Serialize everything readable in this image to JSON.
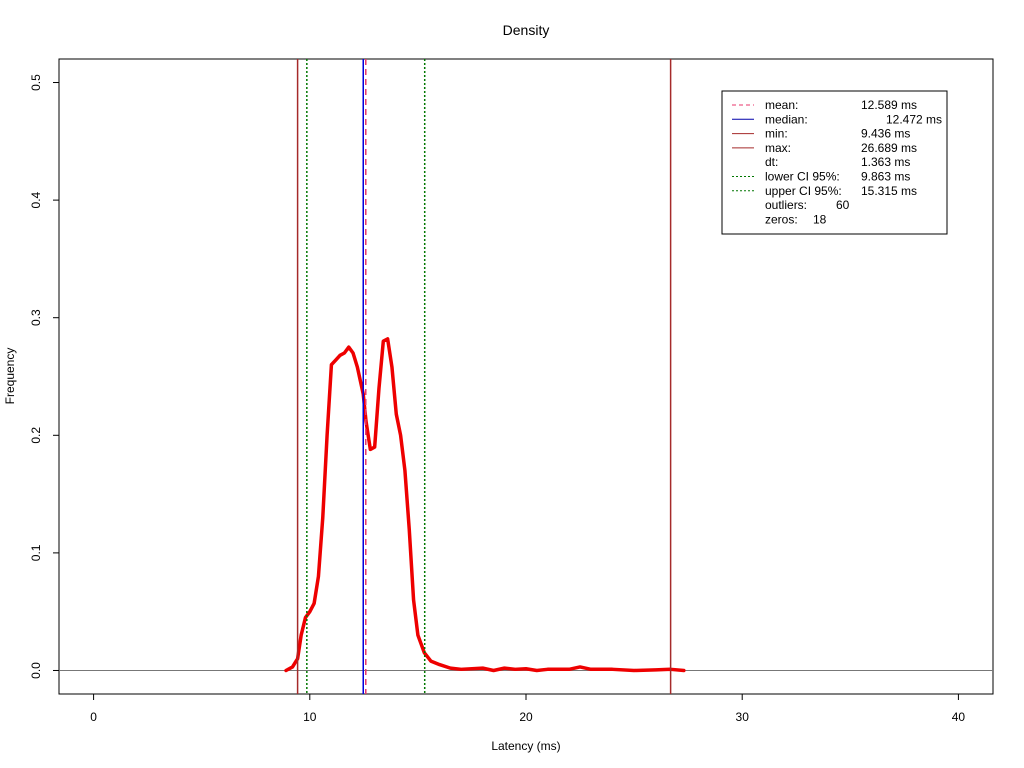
{
  "chart_data": {
    "type": "line",
    "title": "Density",
    "xlabel": "Latency (ms)",
    "ylabel": "Frequency",
    "xlim": [
      -1.6,
      41.6
    ],
    "ylim": [
      -0.02,
      0.52
    ],
    "x_ticks": [
      {
        "value": 0,
        "label": "0"
      },
      {
        "value": 10,
        "label": "10"
      },
      {
        "value": 20,
        "label": "20"
      },
      {
        "value": 30,
        "label": "30"
      },
      {
        "value": 40,
        "label": "40"
      }
    ],
    "y_ticks": [
      {
        "value": 0,
        "label": "0.0"
      },
      {
        "value": 0.1,
        "label": "0.1"
      },
      {
        "value": 0.2,
        "label": "0.2"
      },
      {
        "value": 0.3,
        "label": "0.3"
      },
      {
        "value": 0.4,
        "label": "0.4"
      },
      {
        "value": 0.5,
        "label": "0.5"
      }
    ],
    "grid": false,
    "series": [
      {
        "color": "#ee0000",
        "x": [
          8.9,
          9.2,
          9.436,
          9.6,
          9.8,
          10.0,
          10.2,
          10.4,
          10.6,
          10.8,
          11.0,
          11.2,
          11.4,
          11.6,
          11.8,
          12.0,
          12.2,
          12.472,
          12.6,
          12.8,
          13.0,
          13.2,
          13.4,
          13.6,
          13.8,
          14.0,
          14.2,
          14.4,
          14.6,
          14.8,
          15.0,
          15.3,
          15.6,
          16.0,
          16.5,
          17.0,
          18.0,
          18.5,
          19.0,
          19.5,
          20.0,
          20.5,
          21.0,
          22.0,
          22.5,
          23.0,
          24.0,
          25.0,
          26.0,
          26.689,
          27.3
        ],
        "y": [
          0.0,
          0.003,
          0.01,
          0.03,
          0.045,
          0.05,
          0.057,
          0.08,
          0.13,
          0.2,
          0.26,
          0.264,
          0.268,
          0.27,
          0.275,
          0.27,
          0.258,
          0.235,
          0.212,
          0.188,
          0.19,
          0.24,
          0.28,
          0.282,
          0.258,
          0.218,
          0.2,
          0.17,
          0.12,
          0.06,
          0.03,
          0.015,
          0.008,
          0.005,
          0.002,
          0.001,
          0.002,
          0.0,
          0.002,
          0.001,
          0.0015,
          0.0,
          0.001,
          0.001,
          0.003,
          0.001,
          0.001,
          0.0,
          0.0005,
          0.001,
          0.0
        ]
      }
    ],
    "baseline": {
      "y": 0,
      "color": "#777777"
    },
    "vlines": [
      {
        "name": "mean",
        "x": 12.589,
        "color": "#e8356b",
        "style": "dashed"
      },
      {
        "name": "median",
        "x": 12.472,
        "color": "#0000dd",
        "style": "solid"
      },
      {
        "name": "min",
        "x": 9.436,
        "color": "#a52a2a",
        "style": "solid"
      },
      {
        "name": "max",
        "x": 26.689,
        "color": "#a52a2a",
        "style": "solid"
      },
      {
        "name": "lower-ci",
        "x": 9.863,
        "color": "#007700",
        "style": "dotted"
      },
      {
        "name": "upper-ci",
        "x": 15.315,
        "color": "#007700",
        "style": "dotted"
      }
    ],
    "legend": {
      "placement": "top-right",
      "entries": [
        {
          "key": "mean",
          "label": "mean:",
          "value": "12.589 ms",
          "color": "#e8356b",
          "style": "dashed"
        },
        {
          "key": "median",
          "label": "median:",
          "value": "12.472 ms",
          "color": "#0000aa",
          "style": "solid"
        },
        {
          "key": "min",
          "label": "min:",
          "value": "9.436 ms",
          "color": "#a52a2a",
          "style": "solid"
        },
        {
          "key": "max",
          "label": "max:",
          "value": "26.689 ms",
          "color": "#a52a2a",
          "style": "solid"
        },
        {
          "key": "dt",
          "label": "dt:",
          "value": "1.363 ms",
          "color": "",
          "style": "none"
        },
        {
          "key": "lower-ci",
          "label": "lower CI 95%:",
          "value": "9.863 ms",
          "color": "#007700",
          "style": "dotted"
        },
        {
          "key": "upper-ci",
          "label": "upper CI 95%:",
          "value": "15.315 ms",
          "color": "#007700",
          "style": "dotted"
        },
        {
          "key": "outliers",
          "label": "outliers:",
          "value": "60",
          "color": "",
          "style": "none"
        },
        {
          "key": "zeros",
          "label": "zeros:",
          "value": "18",
          "color": "",
          "style": "none"
        }
      ]
    }
  }
}
